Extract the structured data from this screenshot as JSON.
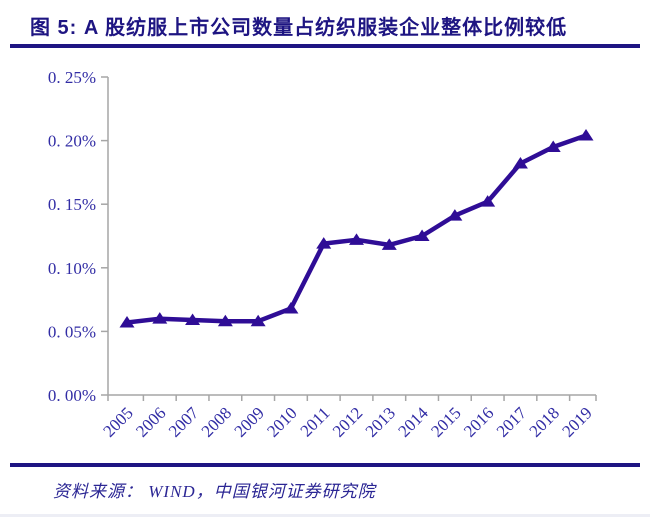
{
  "header": {
    "title": "图 5: A 股纺服上市公司数量占纺织服装企业整体比例较低"
  },
  "footer": {
    "source": "资料来源：  WIND，中国银河证券研究院"
  },
  "colors": {
    "accent_navy": "#1E1582",
    "series_line": "#2F0D96",
    "axis_text": "#322DA5",
    "axis_line": "#A6A6A6"
  },
  "chart_data": {
    "type": "line",
    "categories": [
      "2005",
      "2006",
      "2007",
      "2008",
      "2009",
      "2010",
      "2011",
      "2012",
      "2013",
      "2014",
      "2015",
      "2016",
      "2017",
      "2018",
      "2019"
    ],
    "values": [
      0.057,
      0.06,
      0.059,
      0.058,
      0.058,
      0.068,
      0.119,
      0.122,
      0.118,
      0.125,
      0.141,
      0.152,
      0.182,
      0.195,
      0.204
    ],
    "values_unit": "%",
    "title": "",
    "xlabel": "",
    "ylabel": "",
    "ylim": [
      0,
      0.25
    ],
    "y_ticks": [
      0,
      0.05,
      0.1,
      0.15,
      0.2,
      0.25
    ],
    "y_tick_labels": [
      "0. 00%",
      "0. 05%",
      "0. 10%",
      "0. 15%",
      "0. 20%",
      "0. 25%"
    ],
    "marker": "triangle-up",
    "grid": false,
    "legend": "none",
    "x_label_rotation": -45
  }
}
